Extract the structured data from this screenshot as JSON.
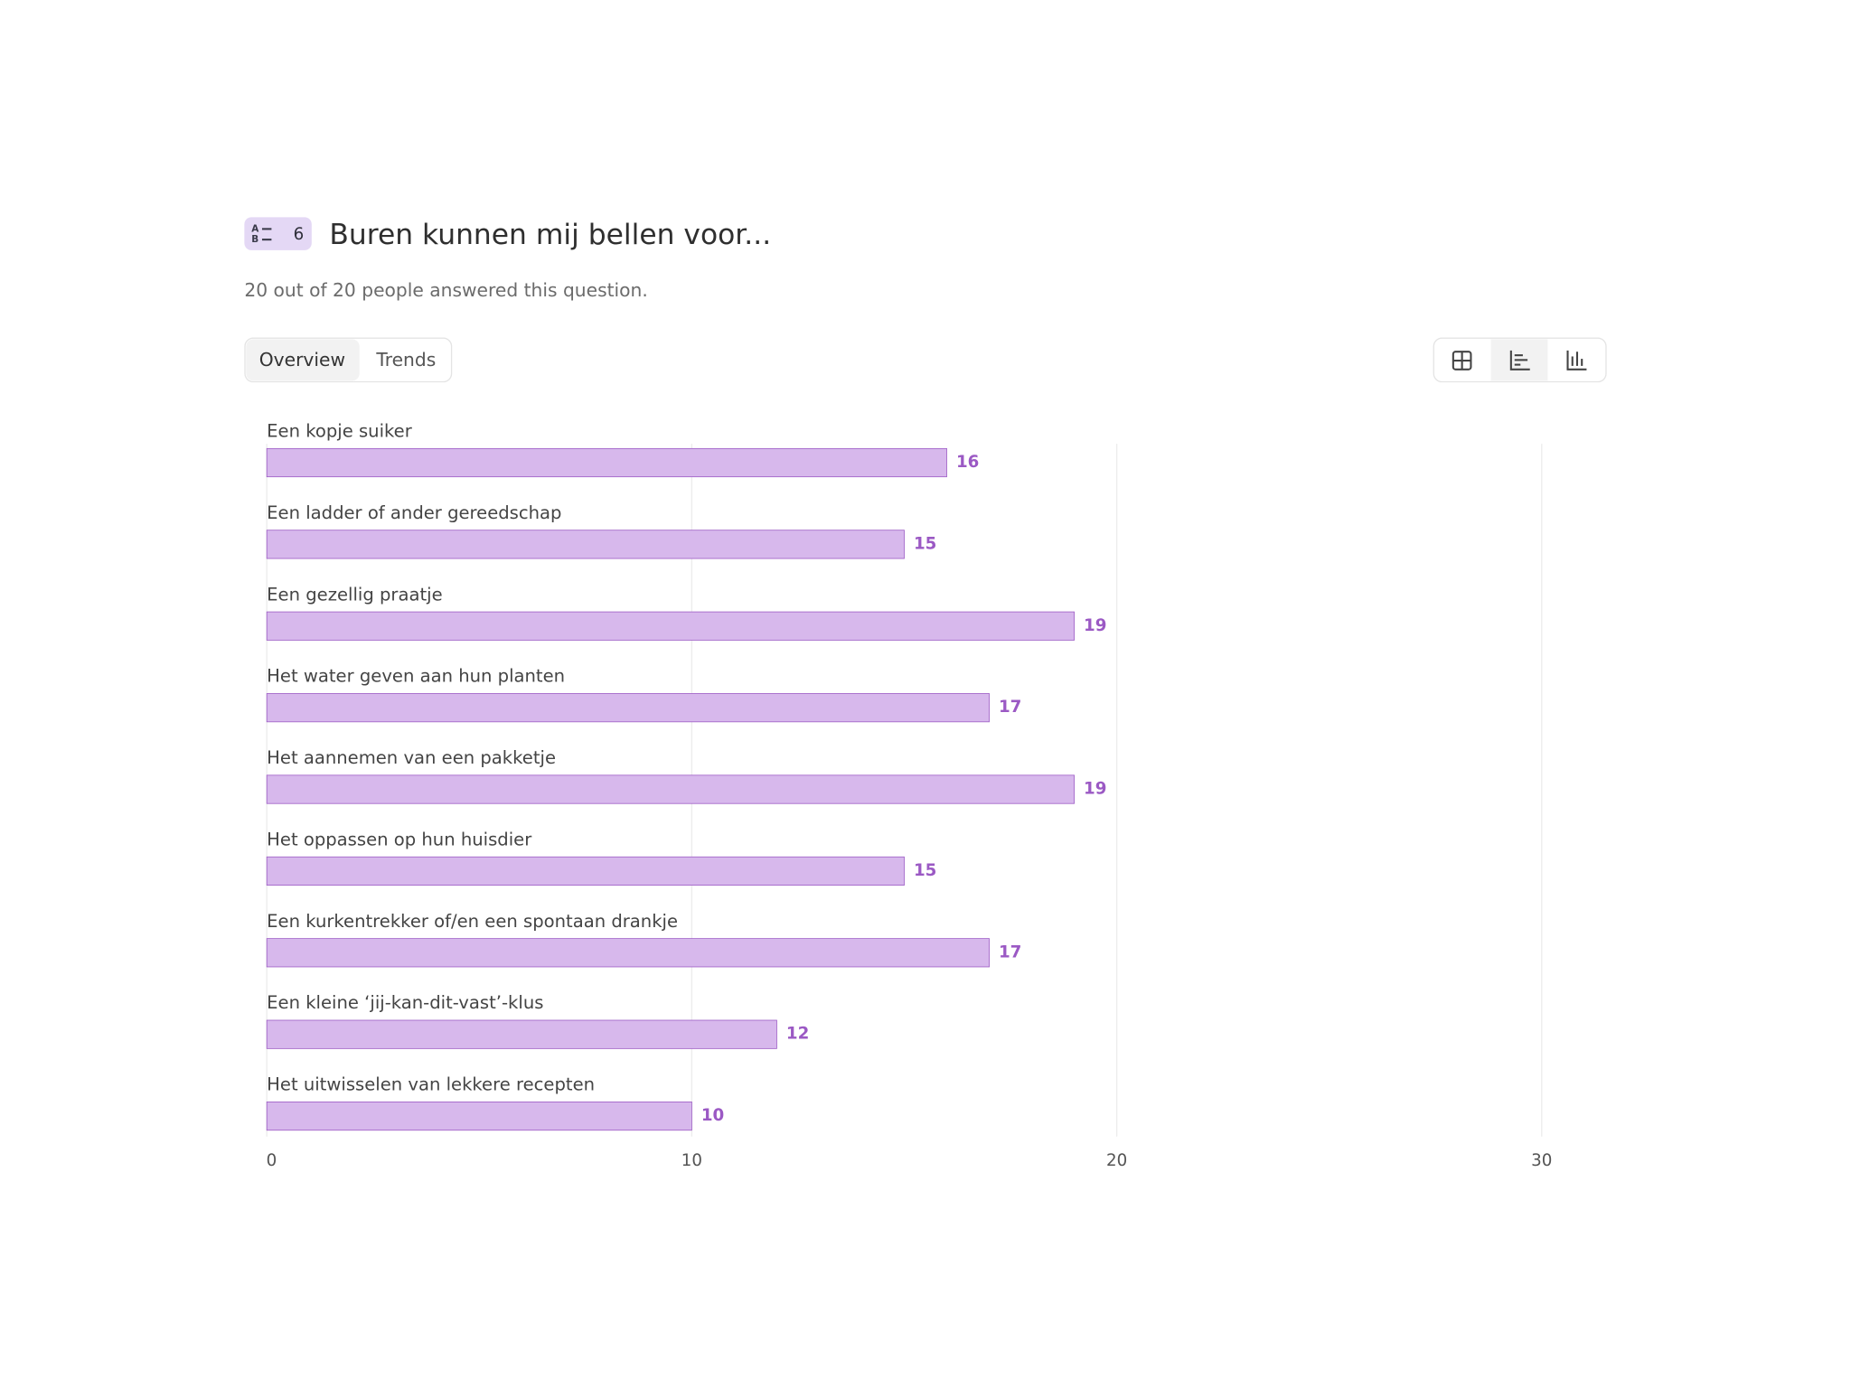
{
  "question": {
    "number": "6",
    "title": "Buren kunnen mij bellen voor...",
    "subtitle": "20 out of 20 people answered this question."
  },
  "tabs": [
    "Overview",
    "Trends"
  ],
  "chart_data": {
    "type": "barh",
    "categories": [
      "Een kopje suiker",
      "Een ladder of ander gereedschap",
      "Een gezellig praatje",
      "Het water geven aan hun planten",
      "Het aannemen van een pakketje",
      "Het oppassen op hun huisdier",
      "Een kurkentrekker of/en een spontaan drankje",
      "Een kleine ‘jij-kan-dit-vast’-klus",
      "Het uitwisselen van lekkere recepten"
    ],
    "values": [
      16,
      15,
      19,
      17,
      19,
      15,
      17,
      12,
      10
    ],
    "color": "#d7b8ec",
    "label_color": "#9b59c4",
    "xlim": [
      0,
      30
    ],
    "xticks": [
      0,
      10,
      20,
      30
    ],
    "grid": true
  }
}
